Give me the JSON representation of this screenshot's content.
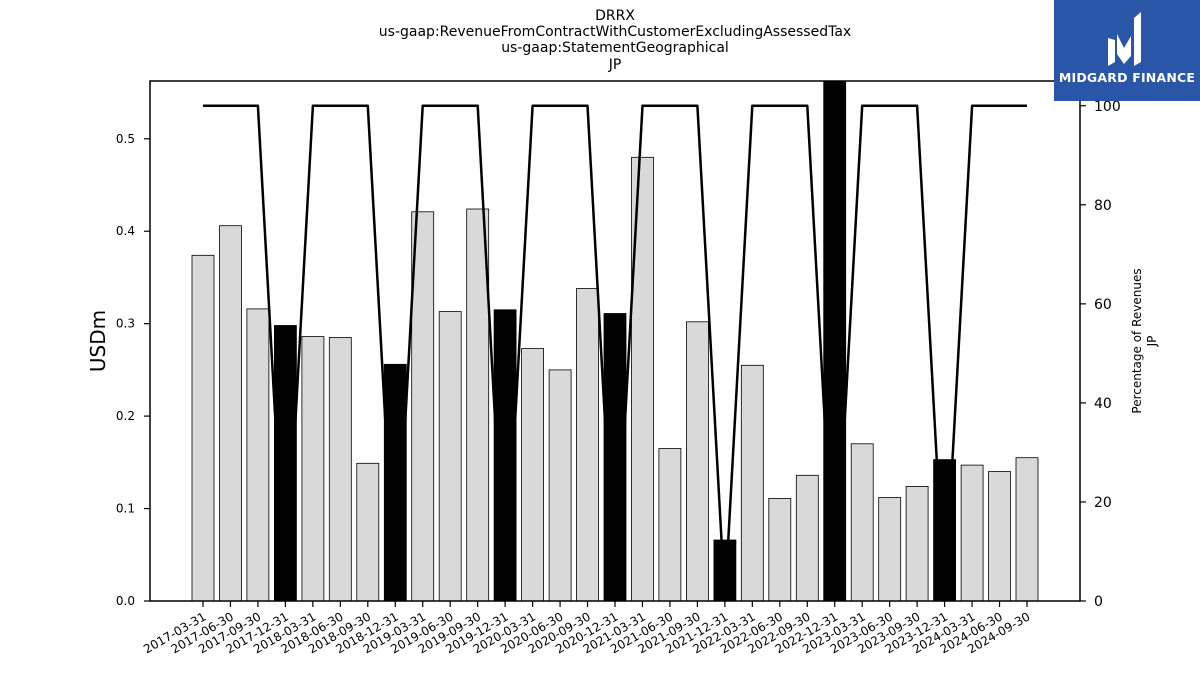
{
  "chart_data": {
    "type": "bar+line",
    "title_lines": [
      "DRRX",
      "us-gaap:RevenueFromContractWithCustomerExcludingAssessedTax",
      "us-gaap:StatementGeographical",
      "JP"
    ],
    "ylabel": "USDm",
    "y2label_lines": [
      "Percentage of Revenues",
      "JP"
    ],
    "ylim": [
      0,
      0.5625
    ],
    "y2lim": [
      0,
      105
    ],
    "yticks": [
      "0.0",
      "0.1",
      "0.2",
      "0.3",
      "0.4",
      "0.5"
    ],
    "y2ticks": [
      "0",
      "20",
      "40",
      "60",
      "80",
      "100"
    ],
    "categories": [
      "2017-03-31",
      "2017-06-30",
      "2017-09-30",
      "2017-12-31",
      "2018-03-31",
      "2018-06-30",
      "2018-09-30",
      "2018-12-31",
      "2019-03-31",
      "2019-06-30",
      "2019-09-30",
      "2019-12-31",
      "2020-03-31",
      "2020-06-30",
      "2020-09-30",
      "2020-12-31",
      "2021-03-31",
      "2021-06-30",
      "2021-09-30",
      "2021-12-31",
      "2022-03-31",
      "2022-06-30",
      "2022-09-30",
      "2022-12-31",
      "2023-03-31",
      "2023-06-30",
      "2023-09-30",
      "2023-12-31",
      "2024-03-31",
      "2024-06-30",
      "2024-09-30"
    ],
    "bars": {
      "values": [
        0.374,
        0.406,
        0.316,
        0.298,
        0.286,
        0.285,
        0.149,
        0.256,
        0.421,
        0.313,
        0.424,
        0.315,
        0.273,
        0.25,
        0.338,
        0.311,
        0.48,
        0.165,
        0.302,
        0.066,
        0.255,
        0.111,
        0.136,
        0.565,
        0.17,
        0.112,
        0.124,
        0.153,
        0.147,
        0.14,
        0.155
      ],
      "highlight": [
        false,
        false,
        false,
        true,
        false,
        false,
        false,
        true,
        false,
        false,
        false,
        true,
        false,
        false,
        false,
        true,
        false,
        false,
        false,
        true,
        false,
        false,
        false,
        true,
        false,
        false,
        false,
        true,
        false,
        false,
        false
      ],
      "color_normal": "#d9d9d9",
      "color_highlight": "#000000"
    },
    "line": {
      "values": [
        100,
        100,
        100,
        0,
        100,
        100,
        100,
        0,
        100,
        100,
        100,
        0,
        100,
        100,
        100,
        0,
        100,
        100,
        100,
        0,
        100,
        100,
        100,
        0,
        100,
        100,
        100,
        0,
        100,
        100,
        100
      ],
      "color": "#000000"
    },
    "grid": false,
    "legend": "none"
  },
  "logo": {
    "text": "MIDGARD FINANCE",
    "bg": "#2a56a8"
  }
}
